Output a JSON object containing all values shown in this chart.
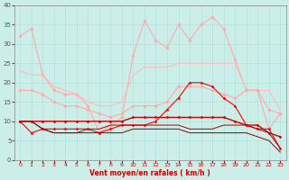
{
  "xlabel": "Vent moyen/en rafales ( km/h )",
  "xlim": [
    -0.5,
    23.5
  ],
  "ylim": [
    0,
    40
  ],
  "yticks": [
    0,
    5,
    10,
    15,
    20,
    25,
    30,
    35,
    40
  ],
  "xticks": [
    0,
    1,
    2,
    3,
    4,
    5,
    6,
    7,
    8,
    9,
    10,
    11,
    12,
    13,
    14,
    15,
    16,
    17,
    18,
    19,
    20,
    21,
    22,
    23
  ],
  "bg_color": "#cceee8",
  "lines": [
    {
      "y": [
        32,
        34,
        22,
        18,
        17,
        17,
        14,
        7,
        9,
        11,
        27,
        36,
        31,
        29,
        35,
        31,
        35,
        37,
        34,
        26,
        18,
        18,
        8,
        12
      ],
      "color": "#ffaaaa",
      "lw": 0.8,
      "marker": "D",
      "ms": 1.8
    },
    {
      "y": [
        23,
        22,
        22,
        19,
        18,
        17,
        15,
        14,
        14,
        15,
        22,
        24,
        24,
        24,
        25,
        25,
        25,
        25,
        25,
        25,
        18,
        18,
        18,
        13
      ],
      "color": "#ffbbbb",
      "lw": 0.8,
      "marker": null,
      "ms": 0
    },
    {
      "y": [
        18,
        18,
        17,
        15,
        14,
        14,
        13,
        12,
        11,
        12,
        14,
        14,
        14,
        15,
        19,
        19,
        19,
        18,
        17,
        16,
        18,
        18,
        13,
        12
      ],
      "color": "#ffaaaa",
      "lw": 0.8,
      "marker": "D",
      "ms": 1.8
    },
    {
      "y": [
        10,
        10,
        10,
        10,
        10,
        10,
        10,
        10,
        10,
        10,
        11,
        11,
        11,
        11,
        11,
        11,
        11,
        11,
        11,
        10,
        9,
        9,
        7,
        6
      ],
      "color": "#cc0000",
      "lw": 1.0,
      "marker": "D",
      "ms": 1.5
    },
    {
      "y": [
        10,
        7,
        8,
        8,
        8,
        8,
        8,
        7,
        8,
        9,
        9,
        9,
        10,
        13,
        16,
        20,
        20,
        19,
        16,
        14,
        9,
        8,
        8,
        3
      ],
      "color": "#ff0000",
      "lw": 0.8,
      "marker": "D",
      "ms": 1.5
    },
    {
      "y": [
        10,
        10,
        8,
        7,
        7,
        7,
        8,
        8,
        9,
        9,
        9,
        9,
        9,
        9,
        9,
        8,
        8,
        8,
        9,
        9,
        9,
        8,
        7,
        3
      ],
      "color": "#aa0000",
      "lw": 0.7,
      "marker": null,
      "ms": 0
    },
    {
      "y": [
        10,
        10,
        8,
        7,
        7,
        7,
        7,
        7,
        7,
        7,
        8,
        8,
        8,
        8,
        8,
        7,
        7,
        7,
        7,
        7,
        7,
        6,
        5,
        2
      ],
      "color": "#880000",
      "lw": 0.7,
      "marker": null,
      "ms": 0
    }
  ],
  "arrow_directions": [
    45,
    75,
    90,
    90,
    90,
    90,
    90,
    90,
    90,
    45,
    135,
    135,
    135,
    135,
    135,
    135,
    135,
    135,
    135,
    135,
    135,
    135,
    135,
    135
  ],
  "arrow_color": "#cc0000",
  "grid_color": "#aadddd",
  "tick_color_x": "#cc0000",
  "tick_color_y": "#555555",
  "xlabel_color": "#cc0000"
}
